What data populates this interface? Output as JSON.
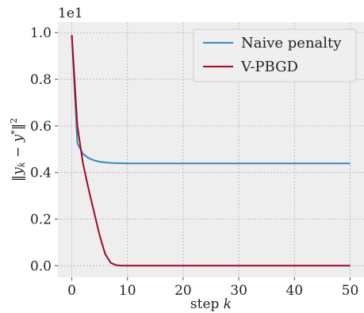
{
  "chart_data": {
    "type": "line",
    "xlabel": "step k",
    "ylabel": "‖yₖ − y*‖²",
    "y_offset_label": "1e1",
    "xlim": [
      -2.5,
      52.5
    ],
    "ylim": [
      -0.05,
      1.045
    ],
    "xticks": [
      0,
      10,
      20,
      30,
      40,
      50
    ],
    "yticks": [
      0.0,
      0.2,
      0.4,
      0.6,
      0.8,
      1.0
    ],
    "xtick_labels": [
      "0",
      "10",
      "20",
      "30",
      "40",
      "50"
    ],
    "ytick_labels": [
      "0.0",
      "0.2",
      "0.4",
      "0.6",
      "0.8",
      "1.0"
    ],
    "grid": true,
    "legend_position": "top-right",
    "background": "#eeeeee",
    "series": [
      {
        "name": "Naive penalty",
        "color": "#348abd",
        "x": [
          0,
          1,
          2,
          3,
          4,
          5,
          6,
          7,
          8,
          9,
          10,
          11,
          12,
          13,
          14,
          15,
          16,
          17,
          18,
          19,
          20,
          21,
          22,
          23,
          24,
          25,
          26,
          27,
          28,
          29,
          30,
          31,
          32,
          33,
          34,
          35,
          36,
          37,
          38,
          39,
          40,
          41,
          42,
          43,
          44,
          45,
          46,
          47,
          48,
          49,
          50
        ],
        "y": [
          0.99,
          0.525,
          0.48,
          0.462,
          0.452,
          0.446,
          0.443,
          0.441,
          0.44,
          0.4395,
          0.439,
          0.439,
          0.439,
          0.439,
          0.439,
          0.439,
          0.439,
          0.439,
          0.439,
          0.439,
          0.439,
          0.439,
          0.439,
          0.439,
          0.439,
          0.439,
          0.439,
          0.439,
          0.439,
          0.439,
          0.439,
          0.439,
          0.439,
          0.439,
          0.439,
          0.439,
          0.439,
          0.439,
          0.439,
          0.439,
          0.439,
          0.439,
          0.439,
          0.439,
          0.439,
          0.439,
          0.439,
          0.439,
          0.439,
          0.439,
          0.439
        ]
      },
      {
        "name": "V-PBGD",
        "color": "#a60628",
        "x": [
          0,
          1,
          2,
          3,
          4,
          5,
          6,
          7,
          8,
          9,
          10,
          11,
          12,
          13,
          14,
          15,
          16,
          17,
          18,
          19,
          20,
          21,
          22,
          23,
          24,
          25,
          26,
          27,
          28,
          29,
          30,
          31,
          32,
          33,
          34,
          35,
          36,
          37,
          38,
          39,
          40,
          41,
          42,
          43,
          44,
          45,
          46,
          47,
          48,
          49,
          50
        ],
        "y": [
          0.99,
          0.6,
          0.44,
          0.33,
          0.23,
          0.13,
          0.05,
          0.012,
          0.002,
          0.0,
          0.0,
          0.0,
          0.0,
          0.0,
          0.0,
          0.0,
          0.0,
          0.0,
          0.0,
          0.0,
          0.0,
          0.0,
          0.0,
          0.0,
          0.0,
          0.0,
          0.0,
          0.0,
          0.0,
          0.0,
          0.0,
          0.0,
          0.0,
          0.0,
          0.0,
          0.0,
          0.0,
          0.0,
          0.0,
          0.0,
          0.0,
          0.0,
          0.0,
          0.0,
          0.0,
          0.0,
          0.0,
          0.0,
          0.0,
          0.0,
          0.0
        ]
      }
    ]
  }
}
